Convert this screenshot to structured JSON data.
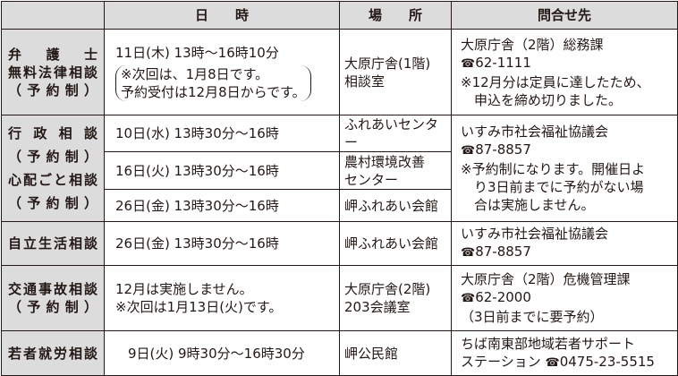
{
  "header": {
    "blank": "",
    "datetime": "日　　時",
    "place": "場　　所",
    "contact": "問合せ先"
  },
  "rows": [
    {
      "label": [
        "弁　護　士",
        "無料法律相談",
        "（予約制）"
      ],
      "datetime": "11日(木) 13時～16時10分",
      "note": [
        "※次回は、1月8日です。",
        "予約受付は12月8日からです。"
      ],
      "place": [
        "大原庁舎(1階)",
        "相談室"
      ],
      "contact": [
        "大原庁舎（2階）総務課",
        "62-1111",
        "※12月分は定員に達したため、",
        "申込を締め切りました。"
      ]
    },
    {
      "label": [
        "行政相談",
        "（予約制）",
        "心配ごと相談",
        "（予約制）"
      ],
      "sessions": [
        {
          "datetime": "10日(水) 13時30分～16時",
          "place": [
            "ふれあいセンター"
          ]
        },
        {
          "datetime": "16日(火) 13時30分～16時",
          "place": [
            "農村環境改善",
            "センター"
          ]
        },
        {
          "datetime": "26日(金) 13時30分～16時",
          "place": [
            "岬ふれあい会館"
          ]
        }
      ],
      "contact": [
        "いすみ市社会福祉協議会",
        "87-8857",
        "※予約制になります。開催日よ",
        "り3日前までに予約がない場",
        "合は実施しません。"
      ]
    },
    {
      "label": [
        "自立生活相談"
      ],
      "datetime": "26日(金) 13時30分～16時",
      "place": [
        "岬ふれあい会館"
      ],
      "contact": [
        "いすみ市社会福祉協議会",
        "87-8857"
      ]
    },
    {
      "label": [
        "交通事故相談",
        "（予約制）"
      ],
      "datetime": [
        "12月は実施しません。",
        "※次回は1月13日(火)です。"
      ],
      "place": [
        "大原庁舎(2階)",
        "203会議室"
      ],
      "contact": [
        "大原庁舎（2階）危機管理課",
        "62-2000",
        "（3日前までに要予約）"
      ]
    },
    {
      "label": [
        "若者就労相談"
      ],
      "datetime": "9日(火) 9時30分～16時30分",
      "place": [
        "岬公民館"
      ],
      "contact": [
        "ちば南東部地域若者サポート",
        "ステーション",
        "0475-23-5515"
      ]
    }
  ],
  "icons": {
    "phone": "☎"
  }
}
